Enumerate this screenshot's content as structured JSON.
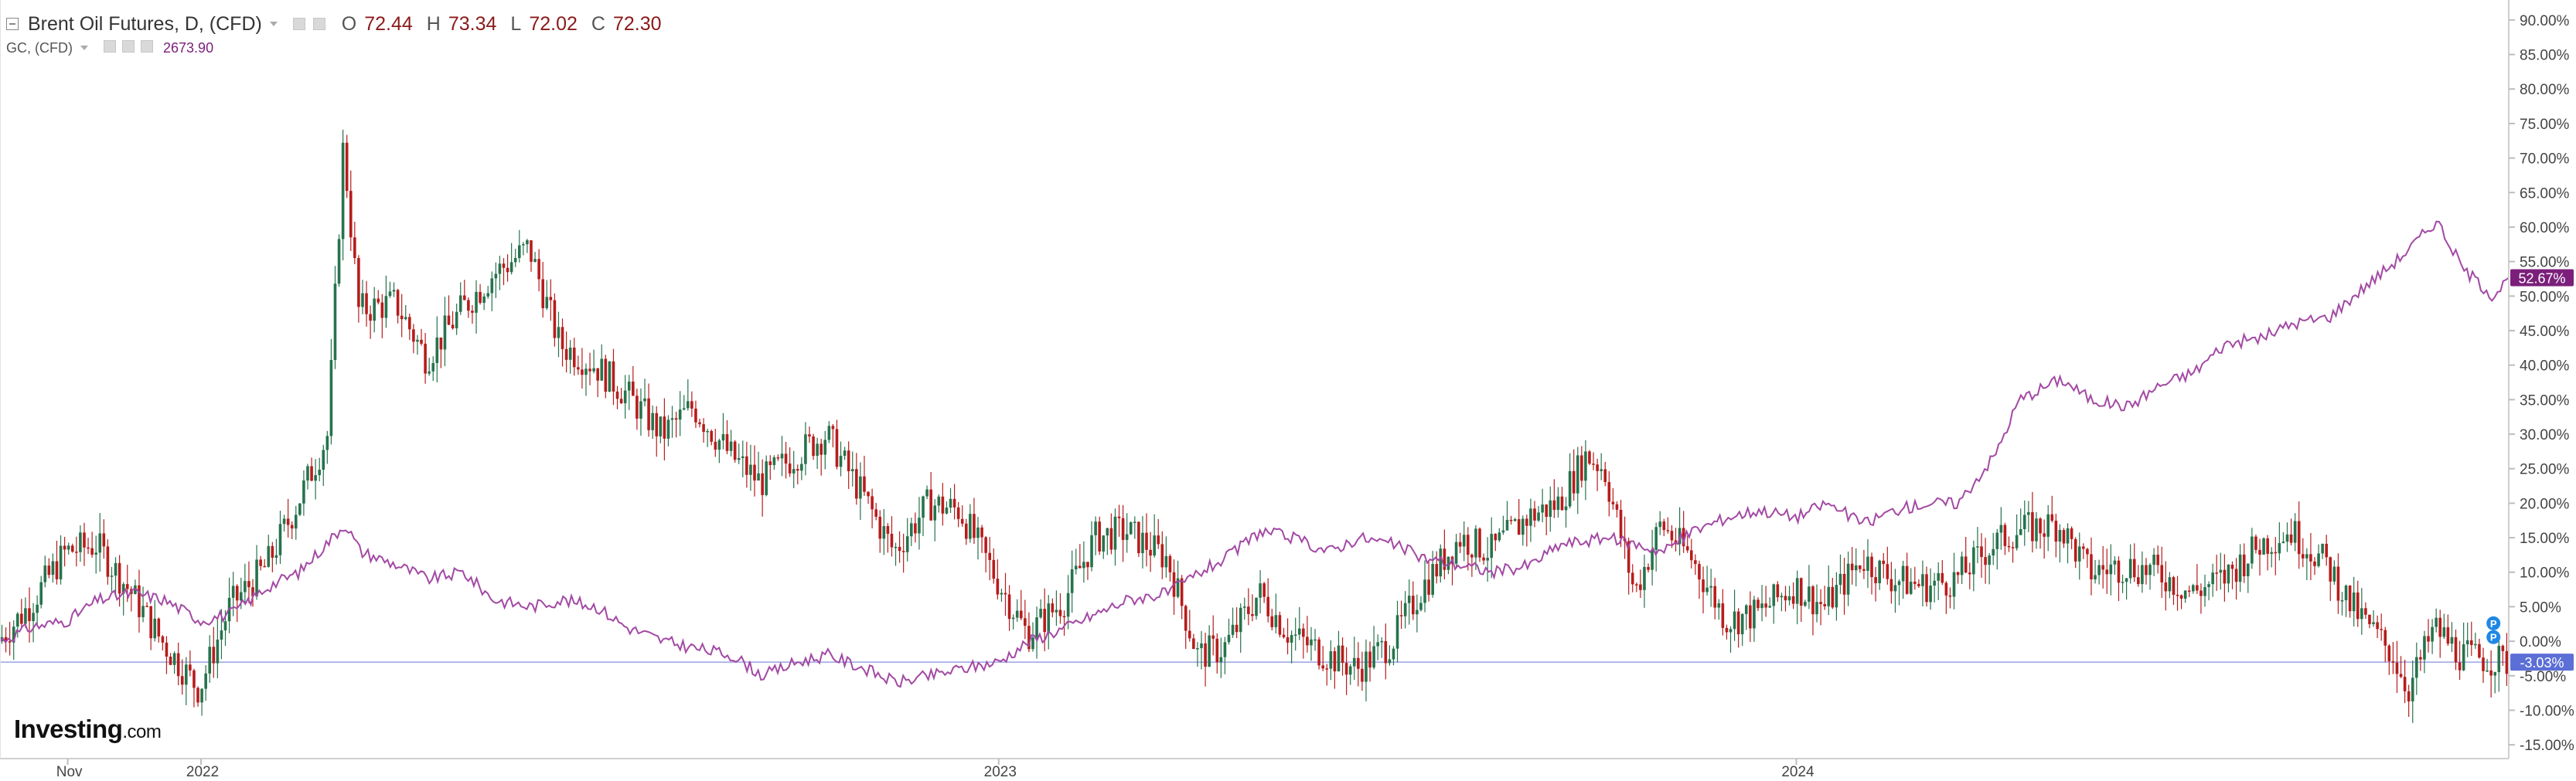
{
  "legend": {
    "symbol_title": "Brent Oil Futures, D, (CFD)",
    "ohlc": [
      {
        "label": "O",
        "value": "72.44"
      },
      {
        "label": "H",
        "value": "73.34"
      },
      {
        "label": "L",
        "value": "72.02"
      },
      {
        "label": "C",
        "value": "72.30"
      }
    ],
    "compare_symbol": "GC, (CFD)",
    "compare_value": "2673.90",
    "icons": [
      "collapse-icon",
      "dropdown-caret-icon",
      "settings-icon",
      "visibility-icon",
      "close-icon"
    ]
  },
  "branding": {
    "logo_main": "Investing",
    "logo_suffix": ".com"
  },
  "colors": {
    "up": "#26734d",
    "down": "#b71c1c",
    "compare_line": "#a349a4",
    "compare_badge": "#7b1f7b",
    "last_price_badge": "#5b6fd6",
    "pivot_marker": "#1e88e5",
    "baseline": "#9aa3e0"
  },
  "markers": {
    "pivot_label": "P"
  },
  "chart_data": {
    "type": "line",
    "y_axis": {
      "unit": "%",
      "ticks": [
        "90.00%",
        "85.00%",
        "80.00%",
        "75.00%",
        "70.00%",
        "65.00%",
        "60.00%",
        "55.00%",
        "50.00%",
        "45.00%",
        "40.00%",
        "35.00%",
        "30.00%",
        "25.00%",
        "20.00%",
        "15.00%",
        "10.00%",
        "5.00%",
        "0.00%",
        "-5.00%",
        "-10.00%",
        "-15.00%"
      ],
      "ylim": [
        -17,
        92
      ]
    },
    "x_axis": {
      "ticks": [
        {
          "label": "Nov",
          "date": "2021-11-01"
        },
        {
          "label": "2022",
          "date": "2022-01-01"
        },
        {
          "label": "2023",
          "date": "2023-01-01"
        },
        {
          "label": "2024",
          "date": "2024-01-01"
        }
      ],
      "xlim": [
        "2021-10-01",
        "2024-11-22"
      ]
    },
    "grid": false,
    "last_value_badges": [
      {
        "series": "GC, (CFD)",
        "value": 52.67,
        "label": "52.67%"
      },
      {
        "series": "Brent Oil Futures, D, (CFD)",
        "value": -3.03,
        "label": "-3.03%"
      }
    ],
    "series": [
      {
        "name": "Brent Oil Futures, D, (CFD)",
        "style": "candlestick",
        "x": [
          "2021-10-01",
          "2021-10-15",
          "2021-11-01",
          "2021-11-15",
          "2021-12-01",
          "2021-12-15",
          "2022-01-01",
          "2022-01-15",
          "2022-02-01",
          "2022-02-15",
          "2022-03-01",
          "2022-03-08",
          "2022-03-15",
          "2022-04-01",
          "2022-04-15",
          "2022-05-01",
          "2022-05-15",
          "2022-06-01",
          "2022-06-15",
          "2022-07-01",
          "2022-07-15",
          "2022-08-01",
          "2022-08-15",
          "2022-09-01",
          "2022-09-15",
          "2022-10-01",
          "2022-10-15",
          "2022-11-01",
          "2022-11-15",
          "2022-12-01",
          "2022-12-15",
          "2023-01-01",
          "2023-01-15",
          "2023-02-01",
          "2023-02-15",
          "2023-03-01",
          "2023-03-20",
          "2023-04-03",
          "2023-04-15",
          "2023-05-01",
          "2023-05-15",
          "2023-06-01",
          "2023-06-15",
          "2023-07-01",
          "2023-07-15",
          "2023-08-01",
          "2023-08-15",
          "2023-09-01",
          "2023-09-15",
          "2023-09-28",
          "2023-10-06",
          "2023-10-20",
          "2023-11-01",
          "2023-11-15",
          "2023-12-01",
          "2023-12-15",
          "2024-01-01",
          "2024-01-15",
          "2024-02-01",
          "2024-02-15",
          "2024-03-01",
          "2024-03-15",
          "2024-04-01",
          "2024-04-12",
          "2024-05-01",
          "2024-05-15",
          "2024-06-01",
          "2024-06-15",
          "2024-07-01",
          "2024-07-15",
          "2024-08-01",
          "2024-08-15",
          "2024-09-01",
          "2024-09-12",
          "2024-10-01",
          "2024-10-08",
          "2024-10-20",
          "2024-11-01",
          "2024-11-22"
        ],
        "values": [
          0,
          5,
          13,
          14,
          7,
          0,
          -7,
          5,
          11,
          20,
          30,
          72,
          48,
          49,
          41,
          48,
          53,
          57,
          43,
          40,
          36,
          30,
          34,
          27,
          23,
          27,
          30,
          21,
          13,
          20,
          19,
          9,
          1,
          6,
          15,
          16,
          12,
          -2,
          -1,
          7,
          1,
          -2,
          -4,
          0,
          8,
          15,
          13,
          18,
          20,
          27,
          25,
          7,
          17,
          12,
          3,
          4,
          8,
          5,
          12,
          9,
          8,
          9,
          14,
          16,
          17,
          10,
          11,
          10,
          7,
          9,
          14,
          16,
          11,
          5,
          -2,
          -7,
          2,
          -2,
          -3.03
        ]
      },
      {
        "name": "GC, (CFD)",
        "style": "line",
        "x": [
          "2021-10-01",
          "2021-10-15",
          "2021-11-01",
          "2021-11-15",
          "2021-12-01",
          "2021-12-15",
          "2022-01-01",
          "2022-01-15",
          "2022-02-01",
          "2022-02-15",
          "2022-03-08",
          "2022-03-15",
          "2022-04-01",
          "2022-04-15",
          "2022-05-01",
          "2022-05-15",
          "2022-06-01",
          "2022-06-15",
          "2022-07-01",
          "2022-07-15",
          "2022-08-01",
          "2022-08-15",
          "2022-09-01",
          "2022-09-15",
          "2022-10-01",
          "2022-10-15",
          "2022-11-01",
          "2022-11-15",
          "2022-12-01",
          "2022-12-15",
          "2023-01-01",
          "2023-01-15",
          "2023-02-01",
          "2023-02-15",
          "2023-03-01",
          "2023-03-20",
          "2023-04-03",
          "2023-04-15",
          "2023-05-01",
          "2023-05-15",
          "2023-06-01",
          "2023-06-15",
          "2023-07-01",
          "2023-07-15",
          "2023-08-01",
          "2023-08-15",
          "2023-09-01",
          "2023-09-15",
          "2023-10-06",
          "2023-10-20",
          "2023-11-01",
          "2023-11-15",
          "2023-12-01",
          "2023-12-15",
          "2024-01-01",
          "2024-01-15",
          "2024-02-01",
          "2024-02-15",
          "2024-03-01",
          "2024-03-15",
          "2024-04-01",
          "2024-04-12",
          "2024-05-01",
          "2024-05-15",
          "2024-06-01",
          "2024-06-15",
          "2024-07-01",
          "2024-07-15",
          "2024-08-01",
          "2024-08-15",
          "2024-09-01",
          "2024-09-12",
          "2024-10-01",
          "2024-10-08",
          "2024-10-20",
          "2024-11-01",
          "2024-11-15",
          "2024-11-22"
        ],
        "values": [
          0,
          2,
          3,
          6,
          7,
          6,
          3,
          4,
          8,
          10,
          17,
          13,
          11,
          9,
          10,
          6,
          5,
          6,
          5,
          2,
          0,
          -1,
          -2,
          -5,
          -3,
          -2,
          -4,
          -6,
          -5,
          -4,
          -3,
          0,
          2,
          4,
          6,
          7,
          10,
          12,
          16,
          15,
          13,
          15,
          14,
          12,
          11,
          10,
          11,
          14,
          15,
          14,
          13,
          16,
          18,
          19,
          18,
          20,
          17,
          19,
          20,
          20,
          27,
          35,
          38,
          35,
          34,
          37,
          39,
          43,
          44,
          46,
          47,
          50,
          55,
          57,
          61,
          54,
          50,
          52.67
        ]
      }
    ]
  }
}
